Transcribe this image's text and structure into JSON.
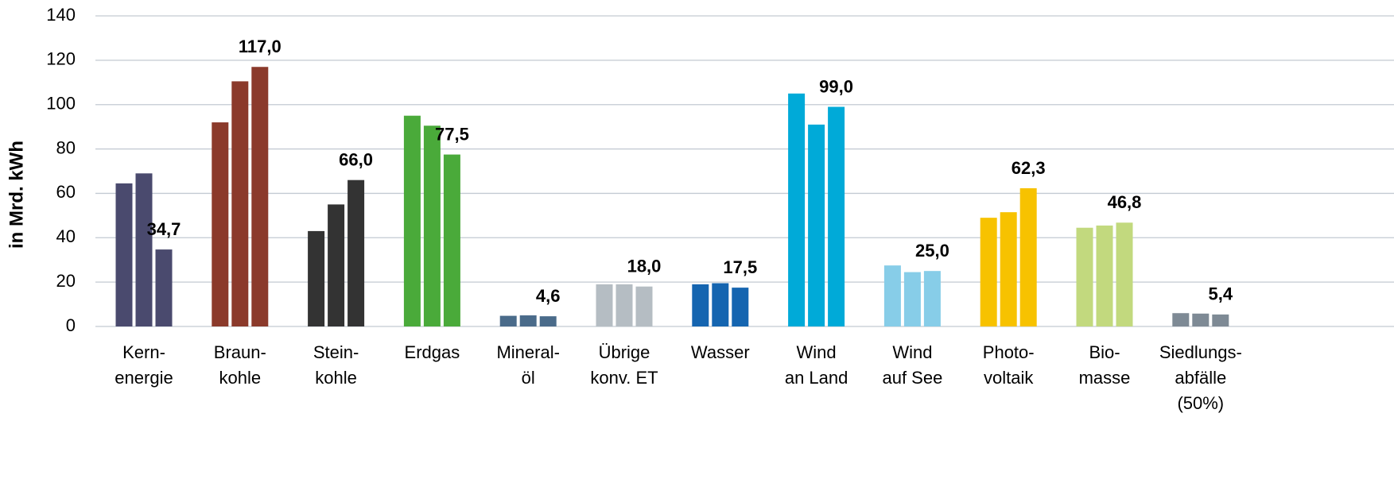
{
  "chart_data": {
    "type": "bar",
    "y_label": "in Mrd. kWh",
    "categories": [
      [
        "Kern-",
        "energie"
      ],
      [
        "Braun-",
        "kohle"
      ],
      [
        "Stein-",
        "kohle"
      ],
      [
        "Erdgas"
      ],
      [
        "Mineral-",
        "öl"
      ],
      [
        "Übrige",
        "konv. ET"
      ],
      [
        "Wasser"
      ],
      [
        "Wind",
        "an Land"
      ],
      [
        "Wind",
        "auf See"
      ],
      [
        "Photo-",
        "voltaik"
      ],
      [
        "Bio-",
        "masse"
      ],
      [
        "Siedlungs-",
        "abfälle",
        "(50%)"
      ]
    ],
    "colors": [
      "#4a4a6e",
      "#8b3a2b",
      "#333333",
      "#4aaa3a",
      "#4a6b8a",
      "#b5bdc3",
      "#1565b0",
      "#00aad8",
      "#87cde8",
      "#f7c200",
      "#c2d97e",
      "#7e8a95"
    ],
    "series": [
      {
        "values": [
          64.5,
          92,
          43,
          95,
          4.8,
          19,
          19,
          105,
          27.5,
          49,
          44.5,
          6
        ]
      },
      {
        "values": [
          69,
          110.5,
          55,
          90.5,
          5,
          19,
          19.5,
          91,
          24.5,
          51.5,
          45.5,
          5.8
        ]
      },
      {
        "values": [
          34.7,
          117.0,
          66.0,
          77.5,
          4.6,
          18.0,
          17.5,
          99.0,
          25.0,
          62.3,
          46.8,
          5.4
        ],
        "value_labels": [
          "34,7",
          "117,0",
          "66,0",
          "77,5",
          "4,6",
          "18,0",
          "17,5",
          "99,0",
          "25,0",
          "62,3",
          "46,8",
          "5,4"
        ]
      }
    ],
    "ylim": [
      0,
      140
    ],
    "yticks": [
      0,
      20,
      40,
      60,
      80,
      100,
      120,
      140
    ],
    "grid": true
  }
}
